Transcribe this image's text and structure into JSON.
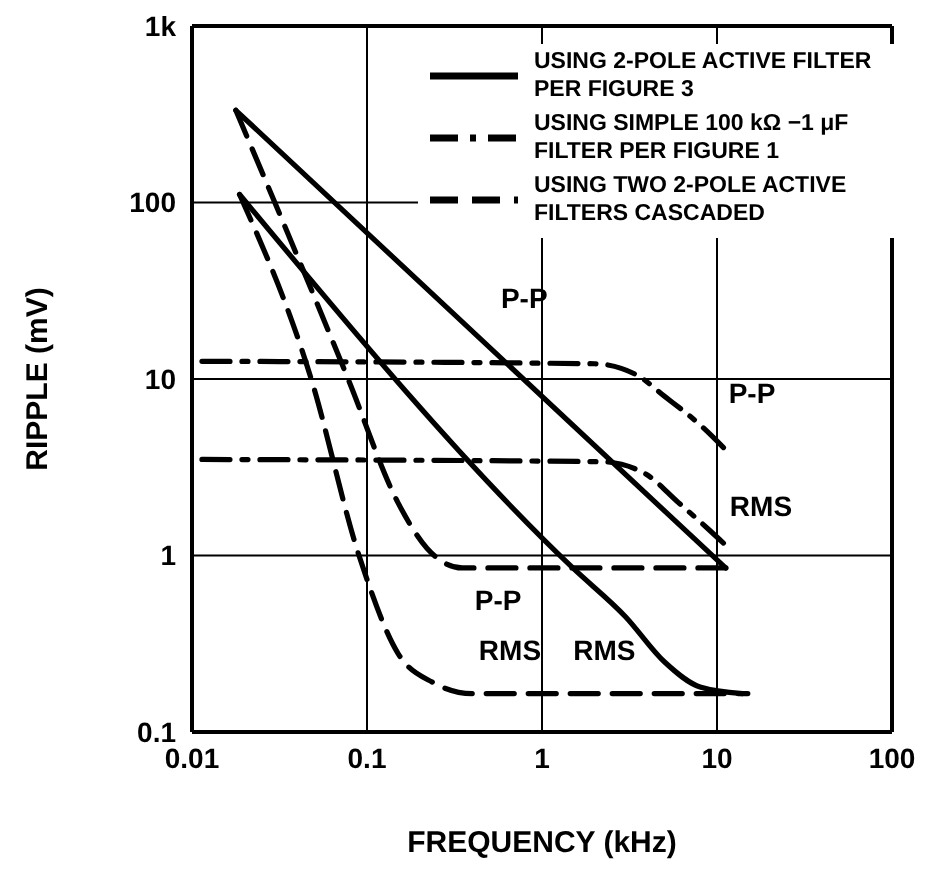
{
  "chart_data": {
    "type": "line",
    "xlabel": "FREQUENCY (kHz)",
    "ylabel": "RIPPLE (mV)",
    "log": "xy",
    "grid": true,
    "legend": "top right",
    "marker": "none",
    "xlim": [
      0.01,
      100
    ],
    "xticks": [
      0.01,
      0.1,
      1,
      10,
      100
    ],
    "ylim": [
      0.1,
      1000
    ],
    "yticks": [
      0.1,
      1,
      10,
      100,
      {
        "value": 1000,
        "label": "1k"
      }
    ],
    "series": [
      {
        "name": "USING 2-POLE ACTIVE FILTER PER FIGURE 3",
        "color": "#000000",
        "line_style": "solid",
        "x": [
          0.0178,
          11.2
        ],
        "values": [
          333,
          0.85
        ]
      },
      {
        "color": "#000000",
        "line_style": "solid",
        "x": [
          0.0187,
          1.5,
          3,
          5,
          8,
          14
        ],
        "values": [
          111,
          0.85,
          0.45,
          0.25,
          0.18,
          0.165
        ]
      },
      {
        "name": "USING SIMPLE 100 kΩ −1 μF FILTER PER FIGURE 1",
        "color": "#000000",
        "line_style": "dashdot",
        "x": [
          0.0114,
          2,
          3.5,
          5,
          8,
          11.7
        ],
        "values": [
          12.6,
          12.2,
          10.5,
          8,
          5.5,
          3.8
        ]
      },
      {
        "color": "#000000",
        "line_style": "dashdot",
        "x": [
          0.0114,
          2.2,
          3.9,
          6,
          9,
          11.7
        ],
        "values": [
          3.5,
          3.4,
          2.9,
          2,
          1.4,
          1.1
        ]
      },
      {
        "name": "USING TWO 2-POLE ACTIVE FILTERS CASCADED",
        "color": "#000000",
        "line_style": "dashed",
        "x": [
          0.0178,
          0.078,
          0.15,
          0.22,
          0.35,
          11.7
        ],
        "values": [
          333,
          10,
          2,
          1.1,
          0.85,
          0.85
        ]
      },
      {
        "color": "#000000",
        "line_style": "dashed",
        "x": [
          0.0187,
          0.048,
          0.09,
          0.15,
          0.24,
          0.4,
          15
        ],
        "values": [
          111,
          10,
          1,
          0.28,
          0.19,
          0.165,
          0.165
        ]
      }
    ],
    "annotations": [
      {
        "text": "P-P",
        "x": 0.52,
        "y": 14.6
      },
      {
        "text": "P-P",
        "x": 8,
        "y": 5.5
      },
      {
        "text": "RMS",
        "x": 9,
        "y": 1.4
      },
      {
        "text": "P-P",
        "x": 0.35,
        "y": 0.85
      },
      {
        "text": "RMS",
        "x": 5,
        "y": 0.25
      },
      {
        "text": "RMS",
        "x": 0.9,
        "y": 0.165
      }
    ]
  }
}
